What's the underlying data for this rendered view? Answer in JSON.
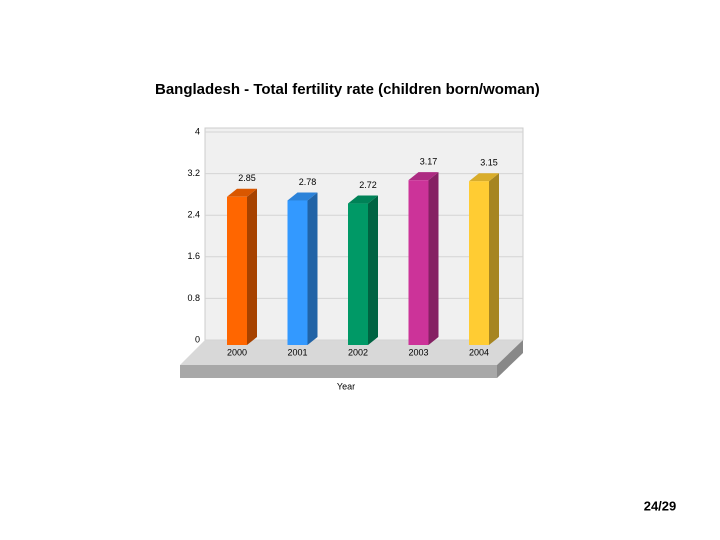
{
  "chart_data": {
    "type": "bar",
    "title": "Bangladesh - Total fertility rate (children born/woman)",
    "x_label": "Year",
    "categories": [
      "2000",
      "2001",
      "2002",
      "2003",
      "2004"
    ],
    "values": [
      2.85,
      2.78,
      2.72,
      3.17,
      3.15
    ],
    "colors": [
      "#ff6600",
      "#3399ff",
      "#009966",
      "#cc3399",
      "#ffcc33"
    ],
    "ylim": [
      0,
      4
    ],
    "yticks": [
      0,
      0.8,
      1.6,
      2.4,
      3.2,
      4
    ],
    "grid": true
  },
  "slide_number": "24/29"
}
